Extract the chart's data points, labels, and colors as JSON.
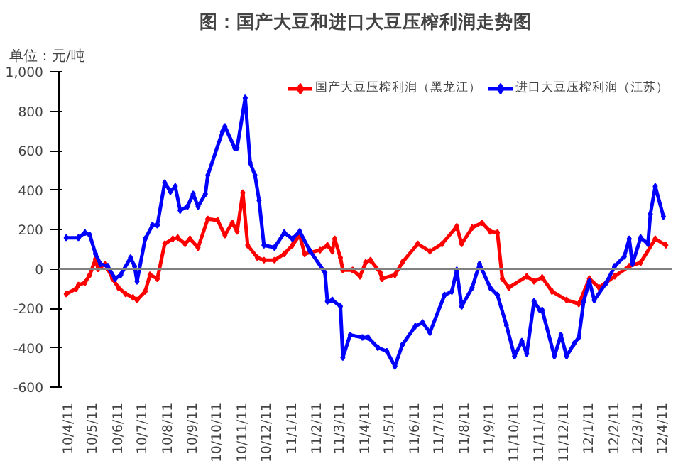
{
  "chart_data": {
    "type": "line",
    "title": "图：国产大豆和进口大豆压榨利润走势图",
    "annotations": [
      "单位：元/吨"
    ],
    "xlim": [
      "2010-03-30",
      "2012-04-22"
    ],
    "ylim": [
      -600,
      1000
    ],
    "yticks": [
      {
        "value": -600,
        "label": "-600"
      },
      {
        "value": -400,
        "label": "-400"
      },
      {
        "value": -200,
        "label": "-200"
      },
      0,
      200,
      400,
      600,
      800,
      {
        "value": 1000,
        "label": "1,000"
      }
    ],
    "xticks": [
      {
        "value": "2010-04-11",
        "label": "10/4/11"
      },
      {
        "value": "2010-05-11",
        "label": "10/5/11"
      },
      {
        "value": "2010-06-11",
        "label": "10/6/11"
      },
      {
        "value": "2010-07-11",
        "label": "10/7/11"
      },
      {
        "value": "2010-08-11",
        "label": "10/8/11"
      },
      {
        "value": "2010-09-11",
        "label": "10/9/11"
      },
      {
        "value": "2010-10-11",
        "label": "10/10/11"
      },
      {
        "value": "2010-11-11",
        "label": "10/11/11"
      },
      {
        "value": "2010-12-11",
        "label": "10/12/11"
      },
      {
        "value": "2011-01-11",
        "label": "11/1/11"
      },
      {
        "value": "2011-02-11",
        "label": "11/2/11"
      },
      {
        "value": "2011-03-11",
        "label": "11/3/11"
      },
      {
        "value": "2011-04-11",
        "label": "11/4/11"
      },
      {
        "value": "2011-05-11",
        "label": "11/5/11"
      },
      {
        "value": "2011-06-11",
        "label": "11/6/11"
      },
      {
        "value": "2011-07-11",
        "label": "11/7/11"
      },
      {
        "value": "2011-08-11",
        "label": "11/8/11"
      },
      {
        "value": "2011-09-11",
        "label": "11/9/11"
      },
      {
        "value": "2011-10-11",
        "label": "11/10/11"
      },
      {
        "value": "2011-11-11",
        "label": "11/11/11"
      },
      {
        "value": "2011-12-11",
        "label": "11/12/11"
      },
      {
        "value": "2012-01-11",
        "label": "12/1/11"
      },
      {
        "value": "2012-02-11",
        "label": "12/2/11"
      },
      {
        "value": "2012-03-11",
        "label": "12/3/11"
      },
      {
        "value": "2012-04-11",
        "label": "12/4/11"
      }
    ],
    "ref_lines": [
      {
        "axis": "y",
        "value": 0,
        "color": "#808080"
      }
    ],
    "marker": "diamond",
    "line_style": "solid",
    "legend": "top right",
    "series": [
      {
        "name": "国产大豆压榨利润（黑龙江）",
        "color": "#ff0000",
        "x": [
          "2010-04-08",
          "2010-04-20",
          "2010-04-23",
          "2010-05-01",
          "2010-05-07",
          "2010-05-14",
          "2010-05-17",
          "2010-05-26",
          "2010-06-04",
          "2010-06-11",
          "2010-06-20",
          "2010-06-29",
          "2010-07-04",
          "2010-07-14",
          "2010-07-20",
          "2010-07-29",
          "2010-08-07",
          "2010-08-17",
          "2010-08-23",
          "2010-09-01",
          "2010-09-07",
          "2010-09-17",
          "2010-09-29",
          "2010-10-11",
          "2010-10-20",
          "2010-10-29",
          "2010-11-04",
          "2010-11-11",
          "2010-11-17",
          "2010-11-29",
          "2010-12-07",
          "2010-12-20",
          "2011-01-01",
          "2011-01-11",
          "2011-01-20",
          "2011-01-26",
          "2011-02-14",
          "2011-02-23",
          "2011-03-01",
          "2011-03-04",
          "2011-03-11",
          "2011-03-14",
          "2011-03-26",
          "2011-04-04",
          "2011-04-11",
          "2011-04-17",
          "2011-04-29",
          "2011-05-01",
          "2011-05-17",
          "2011-05-26",
          "2011-06-14",
          "2011-06-29",
          "2011-07-14",
          "2011-08-01",
          "2011-08-07",
          "2011-08-20",
          "2011-09-01",
          "2011-09-11",
          "2011-09-20",
          "2011-09-26",
          "2011-10-04",
          "2011-10-26",
          "2011-11-04",
          "2011-11-14",
          "2011-11-26",
          "2011-12-14",
          "2011-12-29",
          "2012-01-11",
          "2012-01-23",
          "2012-02-11",
          "2012-02-29",
          "2012-03-14",
          "2012-04-01",
          "2012-04-14"
        ],
        "values": [
          -127,
          -101,
          -82,
          -70,
          -30,
          50,
          0,
          25,
          -50,
          -95,
          -127,
          -145,
          -158,
          -114,
          -30,
          -50,
          127,
          152,
          158,
          127,
          152,
          108,
          253,
          247,
          171,
          234,
          190,
          386,
          120,
          57,
          44,
          44,
          76,
          120,
          171,
          76,
          95,
          120,
          89,
          152,
          57,
          -6,
          -6,
          -38,
          32,
          44,
          -19,
          -50,
          -30,
          32,
          127,
          89,
          127,
          215,
          127,
          209,
          234,
          190,
          184,
          -50,
          -95,
          -38,
          -63,
          -44,
          -114,
          -158,
          -177,
          -50,
          -95,
          -38,
          13,
          32,
          152,
          120
        ]
      },
      {
        "name": "进口大豆压榨利润（江苏）",
        "color": "#0000ff",
        "x": [
          "2010-04-08",
          "2010-04-23",
          "2010-05-01",
          "2010-05-07",
          "2010-05-14",
          "2010-05-20",
          "2010-05-29",
          "2010-06-07",
          "2010-06-14",
          "2010-06-26",
          "2010-07-01",
          "2010-07-04",
          "2010-07-14",
          "2010-07-23",
          "2010-07-29",
          "2010-08-07",
          "2010-08-14",
          "2010-08-20",
          "2010-08-26",
          "2010-09-04",
          "2010-09-11",
          "2010-09-17",
          "2010-09-26",
          "2010-09-29",
          "2010-10-17",
          "2010-10-20",
          "2010-11-01",
          "2010-11-04",
          "2010-11-14",
          "2010-11-20",
          "2010-11-26",
          "2010-12-01",
          "2010-12-07",
          "2010-12-20",
          "2011-01-01",
          "2011-01-11",
          "2011-01-20",
          "2011-02-01",
          "2011-02-20",
          "2011-02-23",
          "2011-03-01",
          "2011-03-11",
          "2011-03-14",
          "2011-03-23",
          "2011-04-07",
          "2011-04-14",
          "2011-04-26",
          "2011-05-07",
          "2011-05-17",
          "2011-05-26",
          "2011-06-11",
          "2011-06-20",
          "2011-06-29",
          "2011-07-17",
          "2011-07-26",
          "2011-08-01",
          "2011-08-07",
          "2011-08-20",
          "2011-08-29",
          "2011-09-11",
          "2011-09-20",
          "2011-10-01",
          "2011-10-11",
          "2011-10-20",
          "2011-10-26",
          "2011-11-04",
          "2011-11-11",
          "2011-11-14",
          "2011-11-29",
          "2011-12-07",
          "2011-12-14",
          "2011-12-23",
          "2011-12-29",
          "2012-01-04",
          "2012-01-11",
          "2012-01-17",
          "2012-02-01",
          "2012-02-11",
          "2012-02-23",
          "2012-02-29",
          "2012-03-04",
          "2012-03-14",
          "2012-03-23",
          "2012-03-26",
          "2012-04-01",
          "2012-04-11"
        ],
        "values": [
          158,
          158,
          184,
          171,
          76,
          25,
          13,
          -50,
          -30,
          57,
          13,
          -63,
          152,
          222,
          222,
          437,
          392,
          418,
          297,
          316,
          380,
          316,
          380,
          475,
          696,
          722,
          614,
          614,
          867,
          538,
          475,
          348,
          120,
          108,
          184,
          152,
          190,
          95,
          -19,
          -165,
          -158,
          -190,
          -449,
          -335,
          -348,
          -348,
          -399,
          -418,
          -494,
          -386,
          -291,
          -272,
          -323,
          -133,
          -114,
          -6,
          -190,
          -95,
          25,
          -95,
          -133,
          -285,
          -443,
          -367,
          -430,
          -165,
          -209,
          -209,
          -443,
          -335,
          -443,
          -380,
          -348,
          -165,
          -63,
          -158,
          -70,
          13,
          63,
          152,
          25,
          158,
          127,
          278,
          418,
          266
        ]
      }
    ]
  }
}
